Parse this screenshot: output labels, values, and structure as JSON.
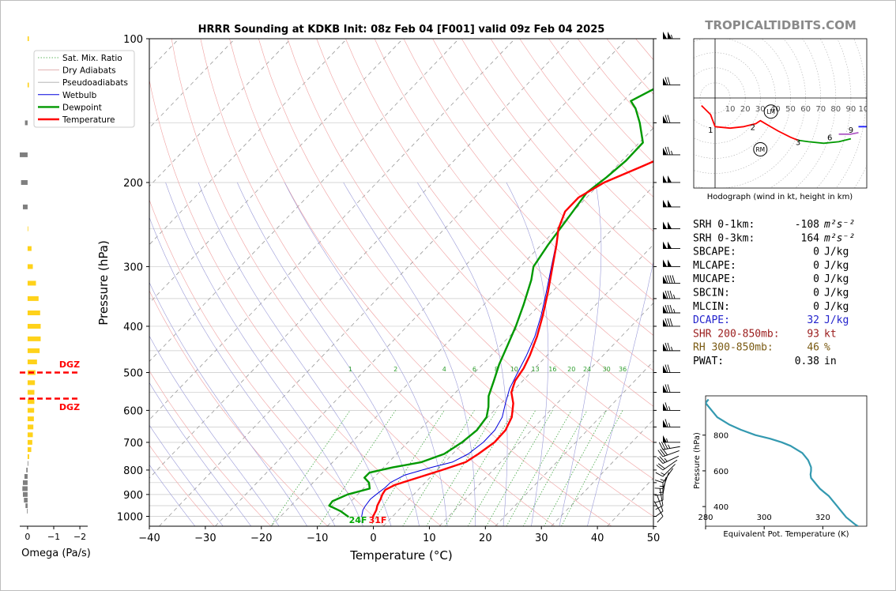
{
  "brand": "TROPICALTIDBITS.COM",
  "chart_data": [
    {
      "id": "skewt",
      "type": "line",
      "title": "HRRR Sounding at KDKB Init: 08z Feb 04 [F001] valid 09z Feb 04 2025",
      "xlabel": "Temperature (°C)",
      "ylabel": "Pressure (hPa)",
      "xlim": [
        -40,
        50
      ],
      "ylim": [
        1050,
        100
      ],
      "y_scale": "log",
      "skew": true,
      "x_ticks": [
        "−40",
        "−30",
        "−20",
        "−10",
        "0",
        "10",
        "20",
        "30",
        "40",
        "50"
      ],
      "y_ticks": [
        "100",
        "200",
        "300",
        "400",
        "500",
        "600",
        "700",
        "800",
        "900",
        "1000"
      ],
      "legend": {
        "position": "top-left",
        "entries": [
          "Sat. Mix. Ratio",
          "Dry Adiabats",
          "Pseudoadiabats",
          "Wetbulb",
          "Dewpoint",
          "Temperature"
        ]
      },
      "mixing_ratio_labels": [
        "1",
        "2",
        "4",
        "6",
        "8",
        "10",
        "13",
        "16",
        "20",
        "24",
        "30",
        "36"
      ],
      "surface_labels": {
        "dewpoint": "24F",
        "temperature": "31F"
      },
      "colors": {
        "temperature": "#ff0000",
        "dewpoint": "#009900",
        "wetbulb": "#0000dd",
        "dry_adiabat": "#f0a0a0",
        "pseudoadiabat": "#9a9ad8",
        "mixing_ratio": "#2e9e2e",
        "isotherm": "#999999"
      },
      "series": [
        {
          "name": "Temperature",
          "points": [
            [
              1003,
              0
            ],
            [
              970,
              -0.6
            ],
            [
              950,
              -1.2
            ],
            [
              920,
              -1.8
            ],
            [
              900,
              -2.3
            ],
            [
              880,
              -2.6
            ],
            [
              860,
              -1.8
            ],
            [
              830,
              1.0
            ],
            [
              800,
              4.0
            ],
            [
              770,
              6.8
            ],
            [
              740,
              7.6
            ],
            [
              700,
              8.4
            ],
            [
              660,
              8.2
            ],
            [
              620,
              7.0
            ],
            [
              580,
              4.8
            ],
            [
              550,
              2.5
            ],
            [
              520,
              1.1
            ],
            [
              490,
              0.4
            ],
            [
              460,
              -0.8
            ],
            [
              420,
              -2.9
            ],
            [
              380,
              -5.6
            ],
            [
              340,
              -8.8
            ],
            [
              300,
              -12.6
            ],
            [
              270,
              -15.8
            ],
            [
              250,
              -18.3
            ],
            [
              230,
              -20.2
            ],
            [
              215,
              -20.3
            ],
            [
              200,
              -18.4
            ],
            [
              185,
              -14.5
            ],
            [
              175,
              -11.8
            ],
            [
              160,
              -7.7
            ],
            [
              150,
              -5.0
            ],
            [
              135,
              -1.5
            ],
            [
              120,
              0.7
            ],
            [
              110,
              0.2
            ],
            [
              100,
              0.3
            ]
          ]
        },
        {
          "name": "Dewpoint",
          "points": [
            [
              1003,
              -4.3
            ],
            [
              975,
              -6.8
            ],
            [
              950,
              -9.8
            ],
            [
              930,
              -10.0
            ],
            [
              900,
              -8.5
            ],
            [
              875,
              -5.6
            ],
            [
              850,
              -6.8
            ],
            [
              830,
              -8.5
            ],
            [
              810,
              -8.5
            ],
            [
              790,
              -5.3
            ],
            [
              770,
              -1.1
            ],
            [
              740,
              1.5
            ],
            [
              700,
              2.6
            ],
            [
              660,
              3.1
            ],
            [
              620,
              2.5
            ],
            [
              590,
              1.0
            ],
            [
              560,
              -0.9
            ],
            [
              520,
              -2.7
            ],
            [
              480,
              -4.7
            ],
            [
              440,
              -6.5
            ],
            [
              400,
              -8.5
            ],
            [
              360,
              -11.0
            ],
            [
              320,
              -14.0
            ],
            [
              300,
              -16.0
            ],
            [
              270,
              -17.3
            ],
            [
              240,
              -18.4
            ],
            [
              210,
              -19.7
            ],
            [
              195,
              -18.9
            ],
            [
              180,
              -18.4
            ],
            [
              165,
              -18.6
            ],
            [
              150,
              -22.7
            ],
            [
              140,
              -26.0
            ],
            [
              135,
              -28.2
            ],
            [
              125,
              -25.6
            ],
            [
              115,
              -22.0
            ],
            [
              105,
              -18.6
            ],
            [
              100,
              -16.5
            ]
          ]
        },
        {
          "name": "Wetbulb",
          "points": [
            [
              1003,
              -2.0
            ],
            [
              970,
              -3.0
            ],
            [
              950,
              -3.3
            ],
            [
              920,
              -3.6
            ],
            [
              900,
              -3.4
            ],
            [
              870,
              -3.0
            ],
            [
              850,
              -3.0
            ],
            [
              820,
              -1.8
            ],
            [
              790,
              1.6
            ],
            [
              770,
              4.4
            ],
            [
              740,
              5.8
            ],
            [
              700,
              6.4
            ],
            [
              660,
              6.3
            ],
            [
              620,
              5.3
            ],
            [
              580,
              3.4
            ],
            [
              540,
              1.5
            ],
            [
              500,
              0.1
            ],
            [
              460,
              -1.4
            ],
            [
              420,
              -3.3
            ],
            [
              380,
              -5.9
            ],
            [
              340,
              -9.1
            ],
            [
              300,
              -12.8
            ],
            [
              270,
              -15.9
            ],
            [
              250,
              -18.3
            ],
            [
              230,
              -20.2
            ],
            [
              215,
              -20.3
            ],
            [
              200,
              -18.4
            ],
            [
              185,
              -14.5
            ],
            [
              175,
              -11.8
            ],
            [
              160,
              -7.7
            ],
            [
              150,
              -5.0
            ],
            [
              135,
              -1.5
            ],
            [
              120,
              0.7
            ],
            [
              110,
              0.2
            ],
            [
              100,
              0.3
            ]
          ]
        }
      ]
    },
    {
      "id": "omega",
      "type": "bar",
      "xlabel": "Omega (Pa/s)",
      "x_ticks": [
        "0",
        "−1",
        "−2"
      ],
      "xlim": [
        0.3,
        -2.3
      ],
      "dgz_label": "DGZ",
      "dgz_levels_hpa": [
        500,
        567
      ],
      "colors": {
        "rising": "#ffd21a",
        "sinking": "#7f7f7f",
        "dgz": "#ff0000"
      },
      "bars": [
        [
          100,
          -0.05
        ],
        [
          125,
          -0.05
        ],
        [
          150,
          0.1
        ],
        [
          175,
          0.3
        ],
        [
          200,
          0.25
        ],
        [
          225,
          0.18
        ],
        [
          250,
          -0.02
        ],
        [
          275,
          -0.15
        ],
        [
          300,
          -0.2
        ],
        [
          325,
          -0.32
        ],
        [
          350,
          -0.42
        ],
        [
          375,
          -0.48
        ],
        [
          400,
          -0.5
        ],
        [
          425,
          -0.5
        ],
        [
          450,
          -0.46
        ],
        [
          475,
          -0.36
        ],
        [
          500,
          -0.3
        ],
        [
          525,
          -0.28
        ],
        [
          550,
          -0.26
        ],
        [
          575,
          -0.26
        ],
        [
          600,
          -0.25
        ],
        [
          625,
          -0.24
        ],
        [
          650,
          -0.22
        ],
        [
          675,
          -0.2
        ],
        [
          700,
          -0.18
        ],
        [
          725,
          -0.14
        ],
        [
          750,
          -0.06
        ],
        [
          775,
          0.0
        ],
        [
          800,
          0.05
        ],
        [
          825,
          0.12
        ],
        [
          850,
          0.18
        ],
        [
          875,
          0.2
        ],
        [
          900,
          0.18
        ],
        [
          925,
          0.14
        ],
        [
          950,
          0.08
        ],
        [
          975,
          0.02
        ]
      ]
    },
    {
      "id": "hodograph",
      "type": "line",
      "xlabel": "Hodograph (wind in kt, height in km)",
      "ring_labels": [
        "10",
        "20",
        "30",
        "40",
        "50",
        "60",
        "70",
        "80",
        "90",
        "100"
      ],
      "height_labels": [
        "1",
        "2",
        "3",
        "6",
        "9"
      ],
      "storm_motion_labels": [
        "LM",
        "RM"
      ],
      "colors": {
        "0-3km": "#ff0000",
        "3-6km": "#009900",
        "6-9km": "#b05cc6",
        "9+km": "#2222ff"
      },
      "segments": [
        {
          "name": "0-3km",
          "points": [
            [
              -9,
              -5
            ],
            [
              -3,
              -11
            ],
            [
              0,
              -19
            ],
            [
              10,
              -20
            ],
            [
              19,
              -19
            ],
            [
              27,
              -17
            ],
            [
              30,
              -15
            ],
            [
              35,
              -18
            ],
            [
              42,
              -22
            ],
            [
              50,
              -26
            ],
            [
              55,
              -28
            ]
          ]
        },
        {
          "name": "3-6km",
          "points": [
            [
              55,
              -28
            ],
            [
              62,
              -29
            ],
            [
              72,
              -30
            ],
            [
              82,
              -29
            ],
            [
              90,
              -27
            ]
          ]
        },
        {
          "name": "6-9km",
          "points": [
            [
              82,
              -24
            ],
            [
              86,
              -24
            ],
            [
              90,
              -24
            ],
            [
              95,
              -23
            ]
          ]
        },
        {
          "name": "9+km",
          "points": [
            [
              95,
              -19
            ],
            [
              102,
              -19
            ],
            [
              108,
              -19
            ],
            [
              112,
              -15
            ],
            [
              108,
              -12
            ],
            [
              105,
              -9
            ]
          ]
        }
      ],
      "markers": [
        {
          "label": "LM",
          "u": 37,
          "v": -9
        },
        {
          "label": "RM",
          "u": 30,
          "v": -34
        }
      ]
    },
    {
      "id": "theta_e",
      "type": "line",
      "xlabel": "Equivalent Pot. Temperature (K)",
      "ylabel": "Pressure (hPa)",
      "xlim": [
        280,
        335
      ],
      "ylim": [
        1020,
        290
      ],
      "x_ticks": [
        "280",
        "300",
        "320"
      ],
      "y_ticks": [
        "400",
        "600",
        "800"
      ],
      "color": "#3399b0",
      "points": [
        [
          1000,
          281
        ],
        [
          980,
          280
        ],
        [
          960,
          281
        ],
        [
          940,
          282
        ],
        [
          900,
          284
        ],
        [
          860,
          288
        ],
        [
          830,
          292
        ],
        [
          800,
          297
        ],
        [
          780,
          302
        ],
        [
          760,
          306
        ],
        [
          740,
          309
        ],
        [
          720,
          311
        ],
        [
          700,
          313
        ],
        [
          680,
          314
        ],
        [
          660,
          315
        ],
        [
          640,
          315.5
        ],
        [
          620,
          316
        ],
        [
          600,
          316
        ],
        [
          580,
          315.8
        ],
        [
          560,
          316
        ],
        [
          540,
          317
        ],
        [
          520,
          318
        ],
        [
          500,
          319
        ],
        [
          480,
          320.5
        ],
        [
          460,
          322
        ],
        [
          440,
          323
        ],
        [
          420,
          324
        ],
        [
          400,
          325
        ],
        [
          380,
          326
        ],
        [
          360,
          327
        ],
        [
          340,
          328
        ],
        [
          320,
          329.5
        ],
        [
          300,
          331
        ],
        [
          290,
          332
        ]
      ]
    }
  ],
  "stats": [
    {
      "label": "SRH 0-1km:",
      "value": "-108",
      "unit": "m²s⁻²",
      "color": "#000000"
    },
    {
      "label": "SRH 0-3km:",
      "value": "164",
      "unit": "m²s⁻²",
      "color": "#000000"
    },
    {
      "label": "SBCAPE:",
      "value": "0",
      "unit": "J/kg",
      "color": "#000000"
    },
    {
      "label": "MLCAPE:",
      "value": "0",
      "unit": "J/kg",
      "color": "#000000"
    },
    {
      "label": "MUCAPE:",
      "value": "0",
      "unit": "J/kg",
      "color": "#000000"
    },
    {
      "label": "SBCIN:",
      "value": "0",
      "unit": "J/kg",
      "color": "#000000"
    },
    {
      "label": "MLCIN:",
      "value": "0",
      "unit": "J/kg",
      "color": "#000000"
    },
    {
      "label": "DCAPE:",
      "value": "32",
      "unit": "J/kg",
      "color": "#2222cc"
    },
    {
      "label": "SHR 200-850mb:",
      "value": "93",
      "unit": "kt",
      "color": "#9a1b1b"
    },
    {
      "label": "RH 300-850mb:",
      "value": "46",
      "unit": "%",
      "color": "#7a5a12"
    },
    {
      "label": "PWAT:",
      "value": "0.38",
      "unit": "in",
      "color": "#000000"
    }
  ],
  "wind_barbs": [
    {
      "p": 100,
      "speed": 105,
      "dir": 270
    },
    {
      "p": 125,
      "speed": 70,
      "dir": 270
    },
    {
      "p": 150,
      "speed": 70,
      "dir": 270
    },
    {
      "p": 175,
      "speed": 75,
      "dir": 270
    },
    {
      "p": 200,
      "speed": 100,
      "dir": 270
    },
    {
      "p": 225,
      "speed": 100,
      "dir": 270
    },
    {
      "p": 250,
      "speed": 100,
      "dir": 270
    },
    {
      "p": 275,
      "speed": 100,
      "dir": 270
    },
    {
      "p": 300,
      "speed": 100,
      "dir": 270
    },
    {
      "p": 325,
      "speed": 90,
      "dir": 270
    },
    {
      "p": 350,
      "speed": 85,
      "dir": 270
    },
    {
      "p": 375,
      "speed": 85,
      "dir": 270
    },
    {
      "p": 400,
      "speed": 80,
      "dir": 270
    },
    {
      "p": 450,
      "speed": 75,
      "dir": 270
    },
    {
      "p": 500,
      "speed": 70,
      "dir": 270
    },
    {
      "p": 550,
      "speed": 70,
      "dir": 270
    },
    {
      "p": 600,
      "speed": 65,
      "dir": 270
    },
    {
      "p": 650,
      "speed": 65,
      "dir": 270
    },
    {
      "p": 700,
      "speed": 55,
      "dir": 270
    },
    {
      "p": 725,
      "speed": 35,
      "dir": 260
    },
    {
      "p": 750,
      "speed": 30,
      "dir": 250
    },
    {
      "p": 775,
      "speed": 25,
      "dir": 245
    },
    {
      "p": 800,
      "speed": 20,
      "dir": 235
    },
    {
      "p": 825,
      "speed": 15,
      "dir": 225
    },
    {
      "p": 850,
      "speed": 15,
      "dir": 215
    },
    {
      "p": 875,
      "speed": 15,
      "dir": 200
    },
    {
      "p": 900,
      "speed": 15,
      "dir": 190
    },
    {
      "p": 925,
      "speed": 10,
      "dir": 180
    },
    {
      "p": 950,
      "speed": 10,
      "dir": 170
    },
    {
      "p": 975,
      "speed": 10,
      "dir": 160
    },
    {
      "p": 1000,
      "speed": 10,
      "dir": 150
    }
  ]
}
